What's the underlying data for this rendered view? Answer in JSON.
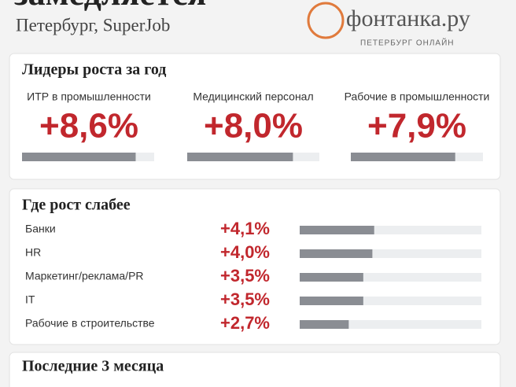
{
  "header": {
    "title": "замедляется",
    "subtitle": "Петербург, SuperJob",
    "logo": "фонтанка.ру",
    "logo_tagline": "ПЕТЕРБУРГ ОНЛАЙН"
  },
  "chart_data": [
    {
      "type": "columns",
      "title": "Лидеры роста за год",
      "categories": [
        "ИТР в промышленности",
        "Медицинский персонал",
        "Рабочие в промышленности"
      ],
      "values": [
        8.6,
        8.0,
        7.9
      ],
      "value_labels": [
        "+8,6%",
        "+8,0%",
        "+7,9%"
      ],
      "color": "#8a8d93",
      "xlim": [
        0,
        10
      ]
    },
    {
      "type": "rows",
      "title": "Где рост слабее",
      "categories": [
        "Банки",
        "HR",
        "Маркетинг/реклама/PR",
        "IT",
        "Рабочие в строительстве"
      ],
      "values": [
        4.1,
        4.0,
        3.5,
        3.5,
        2.7
      ],
      "value_labels": [
        "+4,1%",
        "+4,0%",
        "+3,5%",
        "+3,5%",
        "+2,7%"
      ],
      "color": "#8a8d93",
      "xlim": [
        0,
        10
      ]
    }
  ],
  "section3": {
    "title": "Последние 3 месяца"
  }
}
